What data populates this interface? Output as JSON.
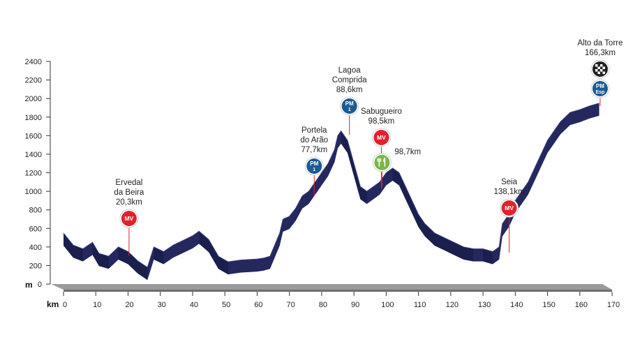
{
  "chart_data": {
    "type": "area",
    "title": "",
    "xlabel": "km",
    "ylabel": "m",
    "xlim": [
      0,
      170
    ],
    "ylim": [
      0,
      2400
    ],
    "x_ticks": [
      "0",
      "10",
      "20",
      "30",
      "40",
      "50",
      "60",
      "70",
      "80",
      "90",
      "100",
      "110",
      "120",
      "130",
      "140",
      "150",
      "160",
      "170"
    ],
    "y_ticks": [
      "0",
      "200",
      "400",
      "600",
      "800",
      "1000",
      "1200",
      "1400",
      "1600",
      "1800",
      "2000",
      "2200",
      "2400"
    ],
    "colors": {
      "profile": "#24285e",
      "profile_side": "#14173f",
      "base": "#9a9a9a",
      "mv": "#e1222c",
      "pm": "#1b5b95",
      "feed": "#7ab648",
      "finish": "#222222"
    },
    "series": [
      {
        "x": [
          0,
          3,
          6,
          9,
          11,
          14,
          17,
          20,
          23,
          26,
          28,
          31,
          34,
          37,
          40,
          42,
          45,
          48,
          51,
          55,
          60,
          62,
          64,
          67,
          68,
          70,
          72,
          74,
          76,
          78,
          80,
          82,
          84,
          85,
          86,
          88,
          90,
          92,
          94,
          96,
          98,
          100,
          102,
          104,
          106,
          108,
          110,
          112,
          115,
          118,
          121,
          124,
          127,
          130,
          133,
          135,
          136,
          138,
          140,
          142,
          144,
          146,
          148,
          150,
          152,
          154,
          157,
          160,
          163,
          166
        ],
        "y": [
          550,
          420,
          380,
          450,
          330,
          300,
          400,
          350,
          250,
          180,
          400,
          350,
          420,
          470,
          520,
          570,
          480,
          300,
          240,
          260,
          270,
          280,
          300,
          550,
          700,
          730,
          820,
          950,
          1000,
          1100,
          1200,
          1300,
          1450,
          1600,
          1650,
          1550,
          1300,
          1050,
          1000,
          1050,
          1100,
          1200,
          1250,
          1200,
          1050,
          900,
          750,
          650,
          550,
          500,
          450,
          400,
          380,
          380,
          350,
          400,
          650,
          750,
          900,
          1000,
          1100,
          1250,
          1400,
          1550,
          1650,
          1750,
          1850,
          1880,
          1920,
          1950
        ]
      }
    ],
    "annotations": [
      {
        "x": 20.3,
        "y": 330,
        "badge": "mv",
        "badge_text": "MV",
        "lines": [
          "Ervedal",
          "da Beira",
          "20,3km"
        ]
      },
      {
        "x": 77.7,
        "y": 980,
        "badge": "pm",
        "badge_text": [
          "PM",
          "1"
        ],
        "lines": [
          "Portela",
          "do Arão",
          "77,7km"
        ]
      },
      {
        "x": 88.6,
        "y": 1640,
        "badge": "pm",
        "badge_text": [
          "PM",
          "1"
        ],
        "lines": [
          "Lagoa",
          "Comprida",
          "88,6km"
        ]
      },
      {
        "x": 98.5,
        "y": 1060,
        "badge": "mv",
        "badge_text": "MV",
        "lines": [
          "Sabugueiro",
          "98,5km"
        ]
      },
      {
        "x": 98.7,
        "y": 1070,
        "badge": "feed",
        "badge_text": "",
        "lines": [
          "98,7km"
        ]
      },
      {
        "x": 138.1,
        "y": 370,
        "badge": "mv",
        "badge_text": "MV",
        "lines": [
          "Seia",
          "138,1km"
        ]
      },
      {
        "x": 166.3,
        "y": 1950,
        "badge": "pm",
        "badge_text": [
          "PM",
          "Esp"
        ],
        "lines": [
          "Alto da Torre",
          "166,3km"
        ],
        "finish": true
      }
    ]
  }
}
